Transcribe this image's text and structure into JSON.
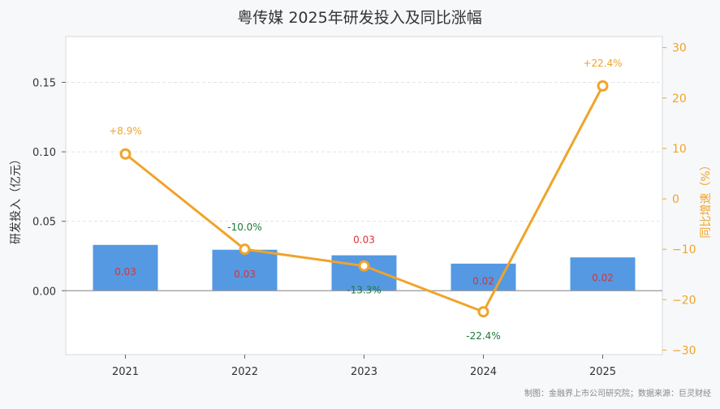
{
  "chart_data": {
    "type": "bar+line",
    "title": "粤传媒 2025年研发投入及同比涨幅",
    "categories": [
      "2021",
      "2022",
      "2023",
      "2024",
      "2025"
    ],
    "bar_series": {
      "values": [
        0.033,
        0.0295,
        0.0255,
        0.0195,
        0.024
      ],
      "labels": [
        "0.03",
        "0.03",
        "0.03",
        "0.02",
        "0.02"
      ],
      "label_color": "#d6333a",
      "color": "#5599e3"
    },
    "line_series": {
      "values": [
        8.9,
        -10.0,
        -13.3,
        -22.4,
        22.4
      ],
      "labels": [
        "+8.9%",
        "-10.0%",
        "-13.3%",
        "-22.4%",
        "+22.4%"
      ],
      "color": "#f0a429",
      "positive_label_color": "#f0a429",
      "negative_label_color": "#1a7a3a"
    },
    "ylabel_left": "研发投入（亿元）",
    "ylabel_right": "同比增速（%）",
    "yticks_left": [
      "0.00",
      "0.05",
      "0.10",
      "0.15"
    ],
    "yticks_right": [
      "−30",
      "−20",
      "−10",
      "0",
      "10",
      "20",
      "30"
    ],
    "ylim_left": [
      -0.046,
      0.183
    ],
    "ylim_right": [
      -30.9,
      32.2
    ],
    "grid": true,
    "source": "制图：金融界上市公司研究院；数据来源：巨灵财经"
  }
}
